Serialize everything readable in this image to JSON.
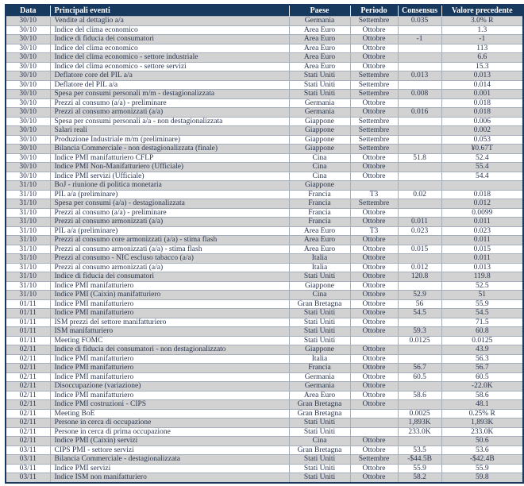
{
  "colors": {
    "header_bg": "#17395E",
    "header_text": "#FFFFFF",
    "row_alt_bg": "#D2D2D2",
    "row_bg": "#FFFFFF",
    "body_text": "#28344E",
    "grid_line": "#A6AEBB"
  },
  "table": {
    "columns": [
      "Data",
      "Principali eventi",
      "Paese",
      "Periodo",
      "Consensus",
      "Valore precedente"
    ],
    "rows": [
      {
        "date": "30/10",
        "event": "Vendite al dettaglio a/a",
        "country": "Germania",
        "period": "Settembre",
        "consensus": "0.035",
        "previous": "3.0% R"
      },
      {
        "date": "30/10",
        "event": "Indice del clima economico",
        "country": "Area Euro",
        "period": "Ottobre",
        "consensus": "",
        "previous": "1.3"
      },
      {
        "date": "30/10",
        "event": "Indice di fiducia dei consumatori",
        "country": "Area Euro",
        "period": "Ottobre",
        "consensus": "-1",
        "previous": "-1"
      },
      {
        "date": "30/10",
        "event": "Indice del clima economico",
        "country": "Area Euro",
        "period": "Ottobre",
        "consensus": "",
        "previous": "113"
      },
      {
        "date": "30/10",
        "event": "Indice del clima economico - settore industriale",
        "country": "Area Euro",
        "period": "Ottobre",
        "consensus": "",
        "previous": "6.6"
      },
      {
        "date": "30/10",
        "event": "Indice del clima economico - settore servizi",
        "country": "Area Euro",
        "period": "Ottobre",
        "consensus": "",
        "previous": "15.3"
      },
      {
        "date": "30/10",
        "event": "Deflatore  core del PIL a/a",
        "country": "Stati Uniti",
        "period": "Settembre",
        "consensus": "0.013",
        "previous": "0.013"
      },
      {
        "date": "30/10",
        "event": "Deflatore del PIL a/a",
        "country": "Stati Uniti",
        "period": "Settembre",
        "consensus": "",
        "previous": "0.014"
      },
      {
        "date": "30/10",
        "event": "Spesa per consumi personali m/m - destagionalizzata",
        "country": "Stati Uniti",
        "period": "Settembre",
        "consensus": "0.008",
        "previous": "0.001"
      },
      {
        "date": "30/10",
        "event": "Prezzi al consumo (a/a) - preliminare",
        "country": "Germania",
        "period": "Ottobre",
        "consensus": "",
        "previous": "0.018"
      },
      {
        "date": "30/10",
        "event": "Prezzi al consumo armonizzati (a/a)",
        "country": "Germania",
        "period": "Ottobre",
        "consensus": "0.016",
        "previous": "0.018"
      },
      {
        "date": "30/10",
        "event": "Spesa per consumi personali a/a - non destagionalizzata",
        "country": "Giappone",
        "period": "Settembre",
        "consensus": "",
        "previous": "0.006"
      },
      {
        "date": "30/10",
        "event": "Salari reali",
        "country": "Giappone",
        "period": "Settembre",
        "consensus": "",
        "previous": "0.002"
      },
      {
        "date": "30/10",
        "event": "Produzione Industriale m/m (preliminare)",
        "country": "Giappone",
        "period": "Settembre",
        "consensus": "",
        "previous": "0.053"
      },
      {
        "date": "30/10",
        "event": "Bilancia Commerciale -  non destagionalizzata (finale)",
        "country": "Giappone",
        "period": "Settembre",
        "consensus": "",
        "previous": "¥0.67T"
      },
      {
        "date": "30/10",
        "event": "Indice PMI manifatturiero CFLP",
        "country": "Cina",
        "period": "Ottobre",
        "consensus": "51.8",
        "previous": "52.4"
      },
      {
        "date": "30/10",
        "event": "Indice PMI  Non-Manifatturiero (Ufficiale)",
        "country": "Cina",
        "period": "Ottobre",
        "consensus": "",
        "previous": "55.4"
      },
      {
        "date": "30/10",
        "event": "Indice PMI  servizi (Ufficiale)",
        "country": "Cina",
        "period": "Ottobre",
        "consensus": "",
        "previous": "54.4"
      },
      {
        "date": "31/10",
        "event": "BoJ - riunione di politica monetaria",
        "country": "Giappone",
        "period": "",
        "consensus": "",
        "previous": ""
      },
      {
        "date": "31/10",
        "event": "PIL a/a (preliminare)",
        "country": "Francia",
        "period": "T3",
        "consensus": "0.02",
        "previous": "0.018"
      },
      {
        "date": "31/10",
        "event": "Spesa per consumi  (a/a) - destagionalizzata",
        "country": "Francia",
        "period": "Settembre",
        "consensus": "",
        "previous": "0.012"
      },
      {
        "date": "31/10",
        "event": "Prezzi al consumo  (a/a) - preliminare",
        "country": "Francia",
        "period": "Ottobre",
        "consensus": "",
        "previous": "0.0099"
      },
      {
        "date": "31/10",
        "event": "Prezzi al consumo armonizzati (a/a)",
        "country": "Francia",
        "period": "Ottobre",
        "consensus": "0.011",
        "previous": "0.011"
      },
      {
        "date": "31/10",
        "event": "PIL a/a (preliminare)",
        "country": "Area Euro",
        "period": "T3",
        "consensus": "0.023",
        "previous": "0.023"
      },
      {
        "date": "31/10",
        "event": "Prezzi al consumo core armonizzati (a/a) - stima flash",
        "country": "Area Euro",
        "period": "Ottobre",
        "consensus": "",
        "previous": "0.011"
      },
      {
        "date": "31/10",
        "event": "Prezzi al consumo armonizzati (a/a) - stima flash",
        "country": "Area Euro",
        "period": "Ottobre",
        "consensus": "0.015",
        "previous": "0.015"
      },
      {
        "date": "31/10",
        "event": "Prezzi al consumo - NIC escluso tabacco (a/a)",
        "country": "Italia",
        "period": "Ottobre",
        "consensus": "",
        "previous": "0.011"
      },
      {
        "date": "31/10",
        "event": "Prezzi al consumo armonizzati (a/a)",
        "country": "Italia",
        "period": "Ottobre",
        "consensus": "0.012",
        "previous": "0.013"
      },
      {
        "date": "31/10",
        "event": "Indice di fiducia dei consumatori",
        "country": "Stati Uniti",
        "period": "Ottobre",
        "consensus": "120.8",
        "previous": "119.8"
      },
      {
        "date": "31/10",
        "event": "Indice PMI manifatturiero",
        "country": "Giappone",
        "period": "Ottobre",
        "consensus": "",
        "previous": "52.5"
      },
      {
        "date": "31/10",
        "event": "Indice PMI (Caixin) manifatturiero",
        "country": "Cina",
        "period": "Ottobre",
        "consensus": "52.9",
        "previous": "51"
      },
      {
        "date": "01/11",
        "event": "Indice PMI manifatturiero",
        "country": "Gran Bretagna",
        "period": "Ottobre",
        "consensus": "56",
        "previous": "55.9"
      },
      {
        "date": "01/11",
        "event": "Indice PMI manifatturiero",
        "country": "Stati Uniti",
        "period": "Ottobre",
        "consensus": "54.5",
        "previous": "54.5"
      },
      {
        "date": "01/11",
        "event": "ISM  prezzi del settore manifatturiero",
        "country": "Stati Uniti",
        "period": "Ottobre",
        "consensus": "",
        "previous": "71.5"
      },
      {
        "date": "01/11",
        "event": "ISM manifatturiero",
        "country": "Stati Uniti",
        "period": "Ottobre",
        "consensus": "59.3",
        "previous": "60.8"
      },
      {
        "date": "01/11",
        "event": "Meeting FOMC",
        "country": "Stati Uniti",
        "period": "",
        "consensus": "0.0125",
        "previous": "0.0125"
      },
      {
        "date": "02/11",
        "event": "Indice di fiducia dei consumatori - non destagionalizzato",
        "country": "Giappone",
        "period": "Ottobre",
        "consensus": "",
        "previous": "43.9"
      },
      {
        "date": "02/11",
        "event": "Indice PMI manifatturiero",
        "country": "Italia",
        "period": "Ottobre",
        "consensus": "",
        "previous": "56.3"
      },
      {
        "date": "02/11",
        "event": "Indice PMI manifatturiero",
        "country": "Francia",
        "period": "Ottobre",
        "consensus": "56.7",
        "previous": "56.7"
      },
      {
        "date": "02/11",
        "event": "Indice PMI manifatturiero",
        "country": "Germania",
        "period": "Ottobre",
        "consensus": "60.5",
        "previous": "60.5"
      },
      {
        "date": "02/11",
        "event": "Disoccupazione (variazione)",
        "country": "Germania",
        "period": "Ottobre",
        "consensus": "",
        "previous": "-22.0K"
      },
      {
        "date": "02/11",
        "event": "Indice PMI manifatturiero",
        "country": "Area Euro",
        "period": "Ottobre",
        "consensus": "58.6",
        "previous": "58.6"
      },
      {
        "date": "02/11",
        "event": "Indice PMI costruzioni - CIPS",
        "country": "Gran Bretagna",
        "period": "Ottobre",
        "consensus": "",
        "previous": "48.1"
      },
      {
        "date": "02/11",
        "event": "Meeting BoE",
        "country": "Gran Bretagna",
        "period": "",
        "consensus": "0.0025",
        "previous": "0.25% R"
      },
      {
        "date": "02/11",
        "event": "Persone in cerca di occupazione",
        "country": "Stati Uniti",
        "period": "",
        "consensus": "1,893K",
        "previous": "1,893K"
      },
      {
        "date": "02/11",
        "event": "Persone in cerca di prima occupazione",
        "country": "Stati Uniti",
        "period": "",
        "consensus": "233.0K",
        "previous": "233.0K"
      },
      {
        "date": "02/11",
        "event": "Indice PMI (Caixin) servizi",
        "country": "Cina",
        "period": "Ottobre",
        "consensus": "",
        "previous": "50.6"
      },
      {
        "date": "03/11",
        "event": "CIPS PMI - settore servizi",
        "country": "Gran Bretagna",
        "period": "Ottobre",
        "consensus": "53.5",
        "previous": "53.6"
      },
      {
        "date": "03/11",
        "event": "Bilancia Commerciale - destagionalizzata",
        "country": "Stati Uniti",
        "period": "Settembre",
        "consensus": "-$44.5B",
        "previous": "-$42.4B"
      },
      {
        "date": "03/11",
        "event": "Indice PMI servizi",
        "country": "Stati Uniti",
        "period": "Ottobre",
        "consensus": "55.9",
        "previous": "55.9"
      },
      {
        "date": "03/11",
        "event": "Indice ISM non manifatturiero",
        "country": "Stati Uniti",
        "period": "Ottobre",
        "consensus": "58.2",
        "previous": "59.8"
      }
    ]
  }
}
